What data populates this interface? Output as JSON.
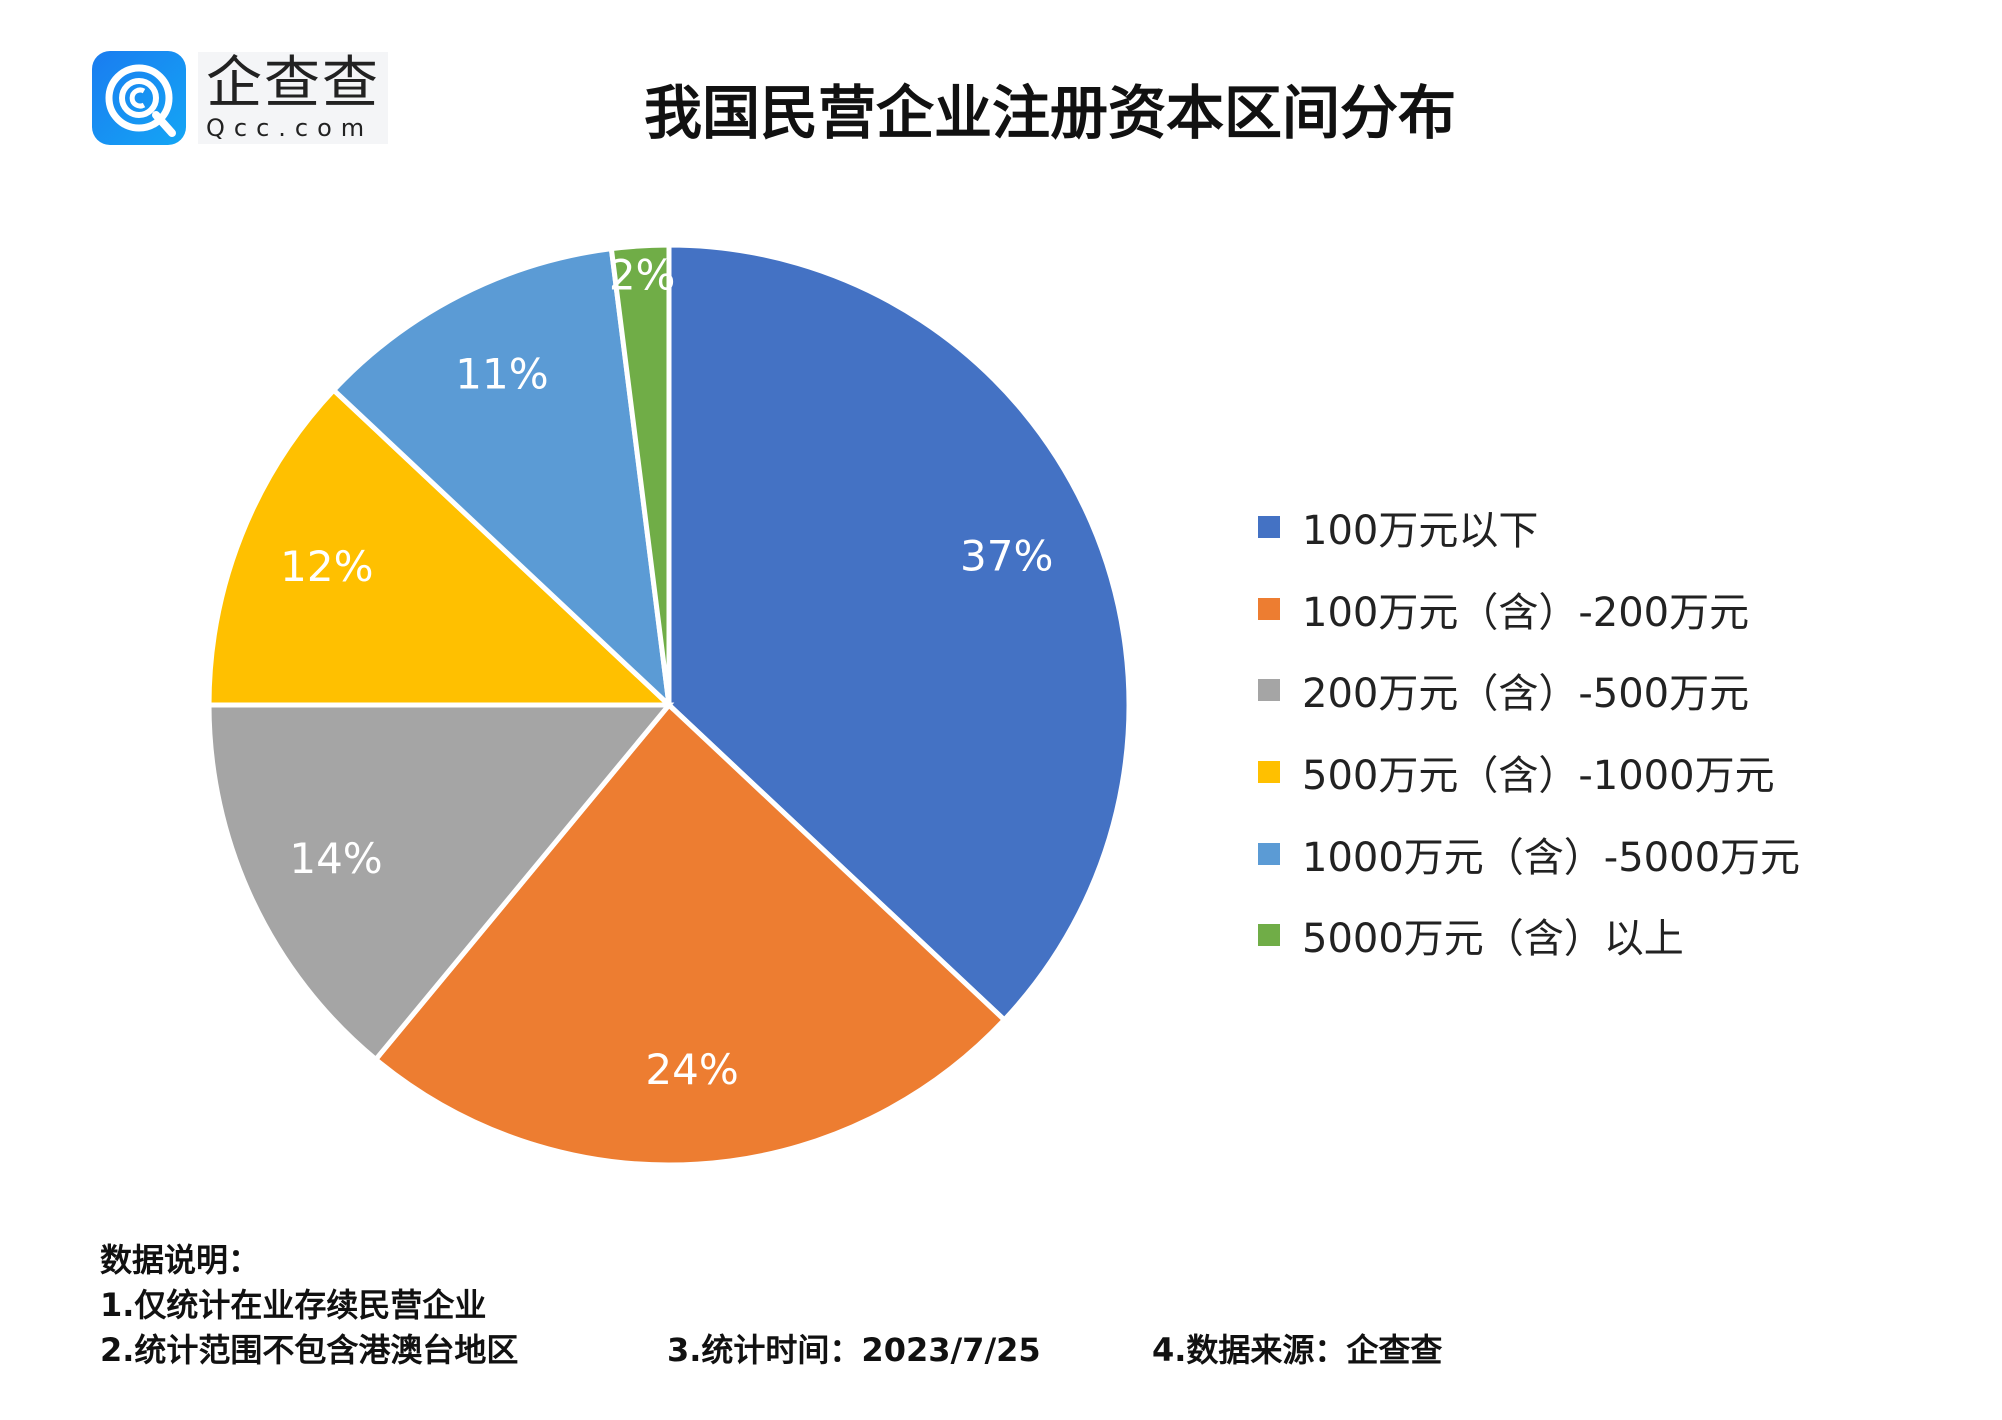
{
  "logo": {
    "name_cn": "企查查",
    "name_en": "Qcc.com"
  },
  "title": "我国民营企业注册资本区间分布",
  "chart_data": {
    "type": "pie",
    "title": "我国民营企业注册资本区间分布",
    "start": "12 o'clock, clockwise",
    "legend_position": "right",
    "categories": [
      "100万元以下",
      "100万元（含）-200万元",
      "200万元（含）-500万元",
      "500万元（含）-1000万元",
      "1000万元（含）-5000万元",
      "5000万元（含）以上"
    ],
    "values": [
      37,
      24,
      14,
      12,
      11,
      2
    ],
    "data_labels": [
      "37%",
      "24%",
      "14%",
      "12%",
      "11%",
      "2%"
    ],
    "colors": [
      "#4472C4",
      "#ED7D31",
      "#A5A5A5",
      "#FFC000",
      "#5B9BD5",
      "#70AD47"
    ]
  },
  "notes": {
    "heading": "数据说明：",
    "line1": "1.仅统计在业存续民营企业",
    "line2": "2.统计范围不包含港澳台地区",
    "line3": "3.统计时间：2023/7/25",
    "line4": "4.数据来源：企查查"
  }
}
